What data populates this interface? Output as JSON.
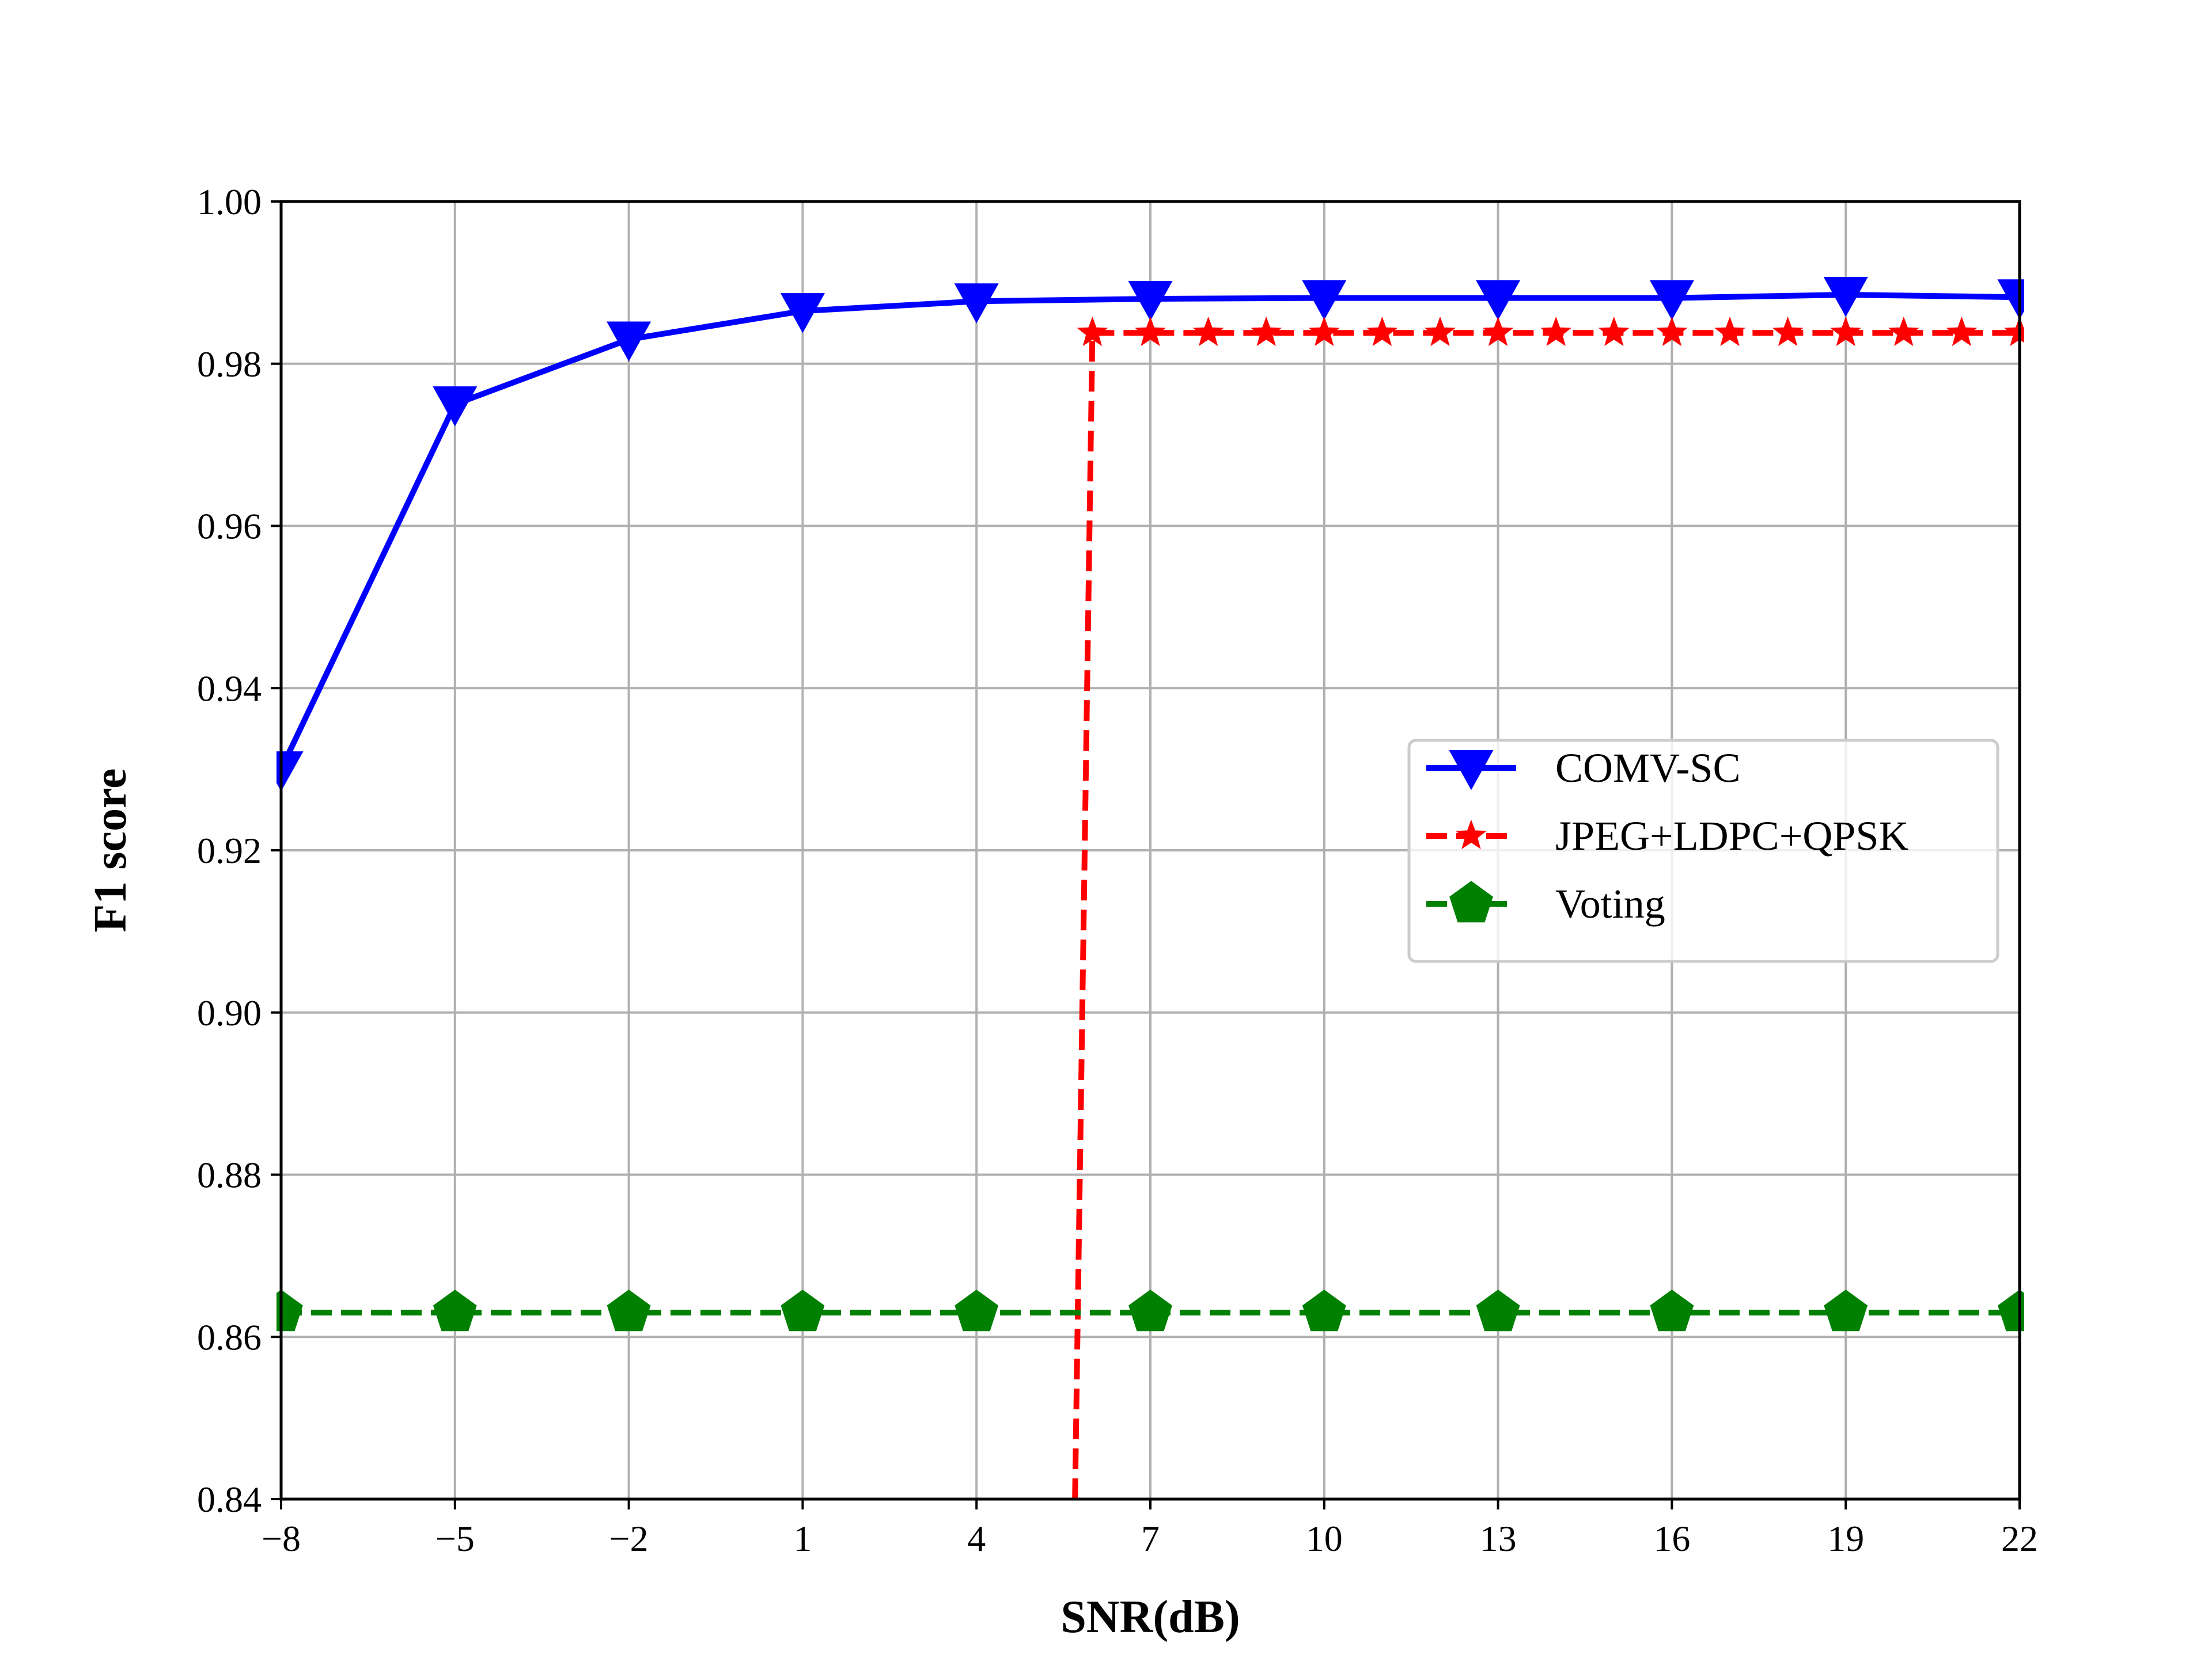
{
  "chart_data": {
    "type": "line",
    "title": "",
    "xlabel": "SNR(dB)",
    "ylabel": "F1 score",
    "xlim": [
      -8,
      22
    ],
    "ylim": [
      0.84,
      1.0
    ],
    "x_ticks": [
      -8,
      -5,
      -2,
      1,
      4,
      7,
      10,
      13,
      16,
      19,
      22
    ],
    "x_tick_labels": [
      "−8",
      "−5",
      "−2",
      "1",
      "4",
      "7",
      "10",
      "13",
      "16",
      "19",
      "22"
    ],
    "y_ticks": [
      0.84,
      0.86,
      0.88,
      0.9,
      0.92,
      0.94,
      0.96,
      0.98,
      1.0
    ],
    "y_tick_labels": [
      "0.84",
      "0.86",
      "0.88",
      "0.90",
      "0.92",
      "0.94",
      "0.96",
      "0.98",
      "1.00"
    ],
    "grid": true,
    "legend_position": "center-right",
    "series": [
      {
        "name": "COMV-SC",
        "color": "#0000ff",
        "line_style": "solid",
        "marker": "triangle-down",
        "x": [
          -8,
          -5,
          -2,
          1,
          4,
          7,
          10,
          13,
          16,
          19,
          22
        ],
        "y": [
          0.93,
          0.975,
          0.983,
          0.9865,
          0.9877,
          0.988,
          0.9881,
          0.9881,
          0.9881,
          0.9885,
          0.9882
        ]
      },
      {
        "name": "JPEG+LDPC+QPSK",
        "color": "#ff0000",
        "line_style": "dashed",
        "marker": "star",
        "line_x": [
          5.7,
          6.0,
          22
        ],
        "line_y": [
          0.84,
          0.9838,
          0.9838
        ],
        "x": [
          6,
          7,
          8,
          9,
          10,
          11,
          12,
          13,
          14,
          15,
          16,
          17,
          18,
          19,
          20,
          21,
          22
        ],
        "y": [
          0.9838,
          0.9838,
          0.9838,
          0.9838,
          0.9838,
          0.9838,
          0.9838,
          0.9838,
          0.9838,
          0.9838,
          0.9838,
          0.9838,
          0.9838,
          0.9838,
          0.9838,
          0.9838,
          0.9838
        ]
      },
      {
        "name": "Voting",
        "color": "#008000",
        "line_style": "dashed",
        "marker": "pentagon",
        "x": [
          -8,
          -5,
          -2,
          1,
          4,
          7,
          10,
          13,
          16,
          19,
          22
        ],
        "y": [
          0.863,
          0.863,
          0.863,
          0.863,
          0.863,
          0.863,
          0.863,
          0.863,
          0.863,
          0.863,
          0.863
        ]
      }
    ]
  }
}
